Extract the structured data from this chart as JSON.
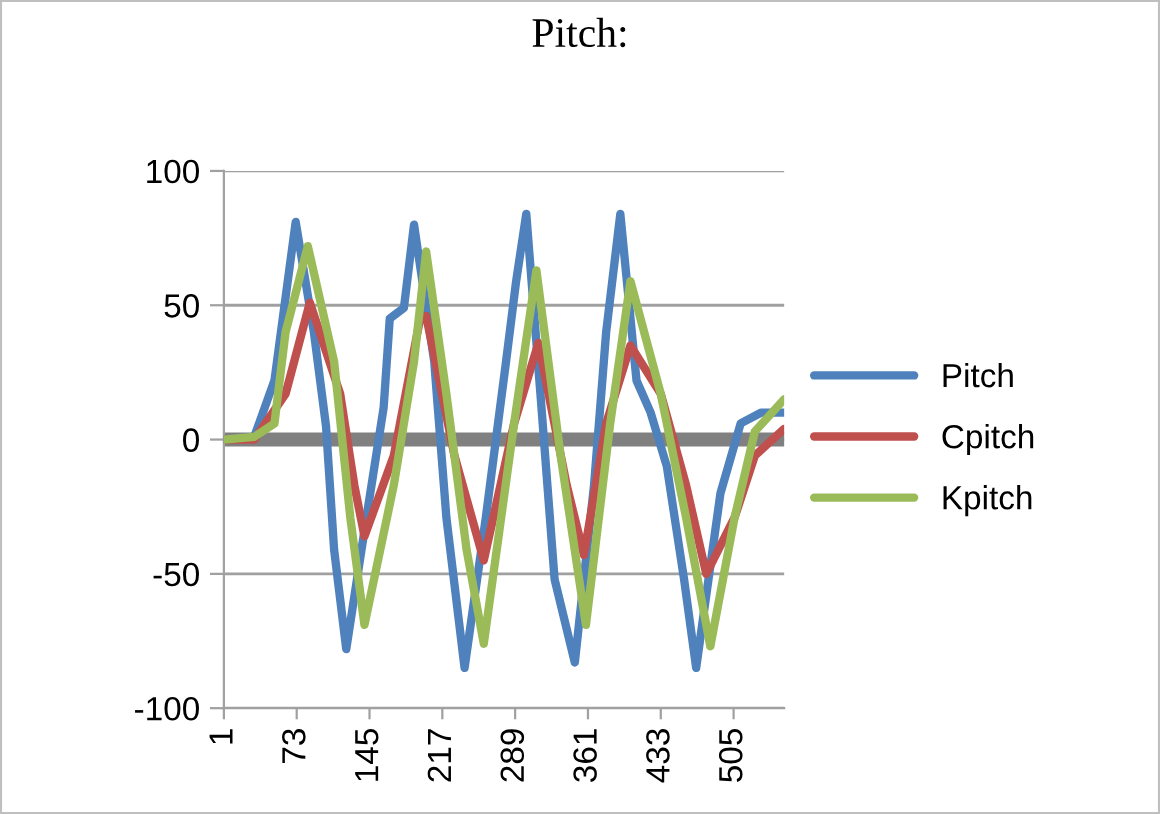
{
  "chart_data": {
    "type": "line",
    "title": "Pitch:",
    "xlim": [
      1,
      555
    ],
    "xticks": [
      1,
      73,
      145,
      217,
      289,
      361,
      433,
      505
    ],
    "ylim": [
      -100,
      100
    ],
    "yticks": [
      -100,
      -50,
      0,
      50,
      100
    ],
    "grid": "y",
    "ref_lines": [
      {
        "axis": "y",
        "value": 0,
        "color": "#808080"
      }
    ],
    "legend": "right",
    "marker": "none",
    "line_style": "solid",
    "series": [
      {
        "name": "Pitch",
        "color": "#4f81bd",
        "x": [
          1,
          31,
          51,
          72,
          90,
          102,
          110,
          122,
          142,
          159,
          165,
          179,
          189,
          209,
          221,
          239,
          260,
          280,
          290,
          300,
          314,
          328,
          348,
          367,
          379,
          393,
          409,
          423,
          439,
          456,
          468,
          492,
          512,
          532,
          555
        ],
        "values": [
          0,
          1,
          22,
          81,
          40,
          5,
          -41,
          -78,
          -29,
          12,
          45,
          49,
          80,
          29,
          -29,
          -85,
          -29,
          29,
          59,
          84,
          17,
          -52,
          -83,
          -17,
          40,
          84,
          22,
          10,
          -10,
          -52,
          -85,
          -20,
          6,
          10,
          10
        ]
      },
      {
        "name": "Cpitch",
        "color": "#c0504d",
        "x": [
          1,
          31,
          62,
          86,
          116,
          130,
          140,
          169,
          195,
          201,
          229,
          258,
          288,
          312,
          340,
          357,
          379,
          403,
          433,
          458,
          478,
          506,
          526,
          555
        ],
        "values": [
          0,
          0,
          17,
          51,
          17,
          -17,
          -36,
          -6,
          45,
          46,
          -6,
          -45,
          6,
          36,
          -17,
          -43,
          6,
          35,
          17,
          -17,
          -50,
          -29,
          -6,
          4
        ]
      },
      {
        "name": "Kpitch",
        "color": "#9bbb59",
        "x": [
          1,
          31,
          51,
          62,
          84,
          110,
          126,
          140,
          169,
          189,
          201,
          221,
          241,
          258,
          288,
          310,
          334,
          359,
          383,
          403,
          433,
          458,
          482,
          506,
          526,
          555
        ],
        "values": [
          0,
          1,
          6,
          40,
          72,
          29,
          -29,
          -69,
          -17,
          29,
          70,
          17,
          -41,
          -76,
          6,
          63,
          -6,
          -69,
          6,
          59,
          17,
          -29,
          -77,
          -29,
          3,
          15
        ]
      }
    ]
  }
}
